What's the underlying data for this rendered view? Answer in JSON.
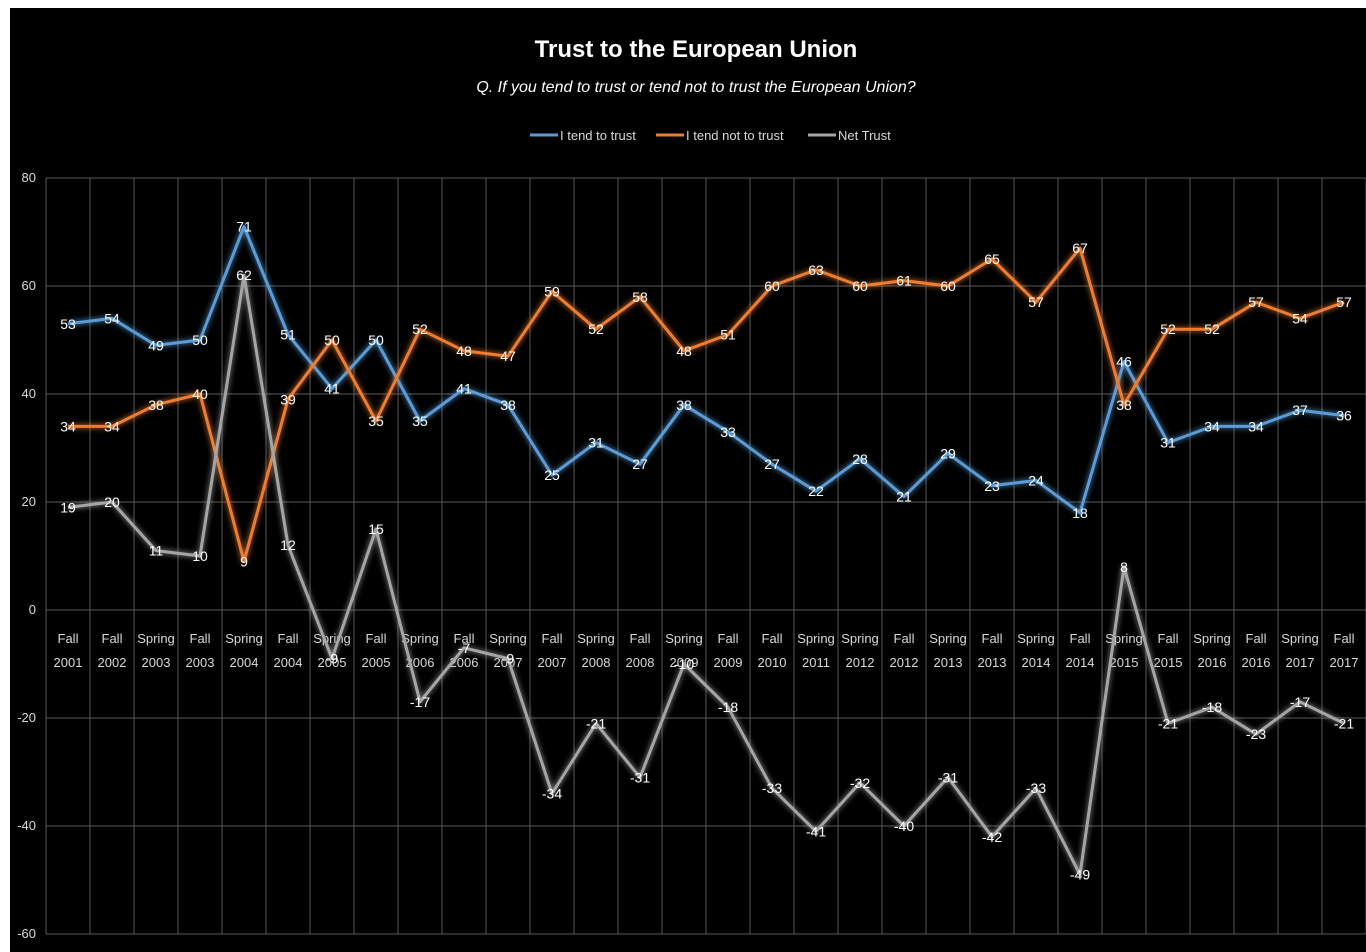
{
  "chart_data": {
    "type": "line",
    "title": "Trust to the European Union",
    "subtitle": "Q. If you tend to trust or  tend not  to trust the European Union?",
    "categories": [
      [
        "Fall",
        "2001"
      ],
      [
        "Fall",
        "2002"
      ],
      [
        "Spring",
        "2003"
      ],
      [
        "Fall",
        "2003"
      ],
      [
        "Spring",
        "2004"
      ],
      [
        "Fall",
        "2004"
      ],
      [
        "Spring",
        "2005"
      ],
      [
        "Fall",
        "2005"
      ],
      [
        "Spring",
        "2006"
      ],
      [
        "Fall",
        "2006"
      ],
      [
        "Spring",
        "2007"
      ],
      [
        "Fall",
        "2007"
      ],
      [
        "Spring",
        "2008"
      ],
      [
        "Fall",
        "2008"
      ],
      [
        "Spring",
        "2009"
      ],
      [
        "Fall",
        "2009"
      ],
      [
        "Fall",
        "2010"
      ],
      [
        "Spring",
        "2011"
      ],
      [
        "Spring",
        "2012"
      ],
      [
        "Fall",
        "2012"
      ],
      [
        "Spring",
        "2013"
      ],
      [
        "Fall",
        "2013"
      ],
      [
        "Spring",
        "2014"
      ],
      [
        "Fall",
        "2014"
      ],
      [
        "Spring",
        "2015"
      ],
      [
        "Fall",
        "2015"
      ],
      [
        "Spring",
        "2016"
      ],
      [
        "Fall",
        "2016"
      ],
      [
        "Spring",
        "2017"
      ],
      [
        "Fall",
        "2017"
      ]
    ],
    "series": [
      {
        "name": "I tend to trust",
        "color": "#5b9bd5",
        "values": [
          53,
          54,
          49,
          50,
          71,
          51,
          41,
          50,
          35,
          41,
          38,
          25,
          31,
          27,
          38,
          33,
          27,
          22,
          28,
          21,
          29,
          23,
          24,
          18,
          46,
          31,
          34,
          34,
          37,
          36
        ]
      },
      {
        "name": "I tend not to trust",
        "color": "#ed7d31",
        "values": [
          34,
          34,
          38,
          40,
          9,
          39,
          50,
          35,
          52,
          48,
          47,
          59,
          52,
          58,
          48,
          51,
          60,
          63,
          60,
          61,
          60,
          65,
          57,
          67,
          38,
          52,
          52,
          57,
          54,
          57
        ]
      },
      {
        "name": "Net Trust",
        "color": "#a5a5a5",
        "values": [
          19,
          20,
          11,
          10,
          62,
          12,
          -9,
          15,
          -17,
          -7,
          -9,
          -34,
          -21,
          -31,
          -10,
          -18,
          -33,
          -41,
          -32,
          -40,
          -31,
          -42,
          -33,
          -49,
          8,
          -21,
          -18,
          -23,
          -17,
          -21
        ]
      }
    ],
    "ylim": [
      -60,
      80
    ],
    "yticks": [
      80,
      60,
      40,
      20,
      0,
      -20,
      -40,
      -60
    ],
    "grid": true,
    "legend": "top-center"
  }
}
